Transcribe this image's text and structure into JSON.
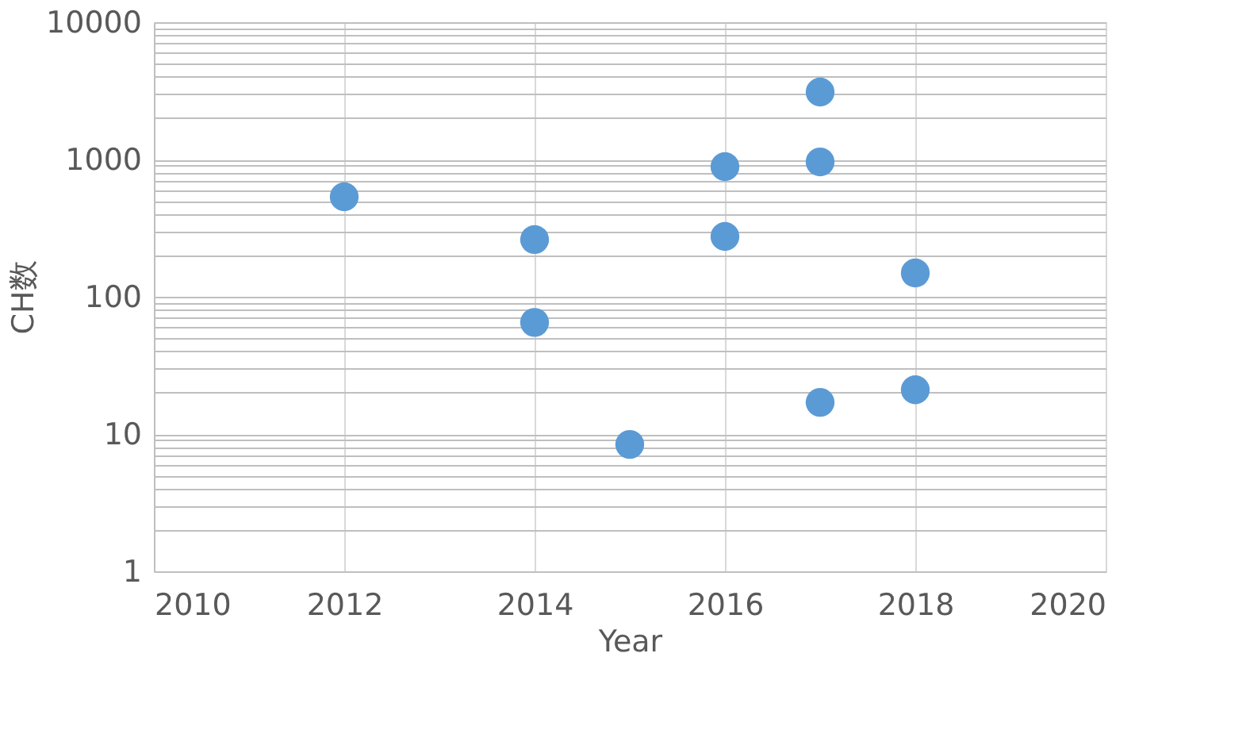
{
  "chart_data": {
    "type": "scatter",
    "xlabel": "Year",
    "ylabel": "CH数",
    "x": [
      2012,
      2014,
      2014,
      2015,
      2016,
      2016,
      2017,
      2017,
      2017,
      2018,
      2018
    ],
    "series": [
      {
        "color": "#5b9bd5",
        "values": [
          535,
          261,
          65,
          8.4,
          887,
          275,
          3100,
          960,
          17,
          149,
          21
        ]
      }
    ],
    "xlim": [
      2010,
      2020
    ],
    "xticks": [
      2010,
      2012,
      2014,
      2016,
      2018,
      2020
    ],
    "ylim": [
      1,
      10000
    ],
    "log": true,
    "yticks": [
      1,
      {
        "value": 2,
        "label": null
      },
      {
        "value": 3,
        "label": null
      },
      {
        "value": 4,
        "label": null
      },
      {
        "value": 5,
        "label": null
      },
      {
        "value": 6,
        "label": null
      },
      {
        "value": 7,
        "label": null
      },
      {
        "value": 8,
        "label": null
      },
      {
        "value": 9,
        "label": null
      },
      10,
      {
        "value": 20,
        "label": null
      },
      {
        "value": 30,
        "label": null
      },
      {
        "value": 40,
        "label": null
      },
      {
        "value": 50,
        "label": null
      },
      {
        "value": 60,
        "label": null
      },
      {
        "value": 70,
        "label": null
      },
      {
        "value": 80,
        "label": null
      },
      {
        "value": 90,
        "label": null
      },
      100,
      {
        "value": 200,
        "label": null
      },
      {
        "value": 300,
        "label": null
      },
      {
        "value": 400,
        "label": null
      },
      {
        "value": 500,
        "label": null
      },
      {
        "value": 600,
        "label": null
      },
      {
        "value": 700,
        "label": null
      },
      {
        "value": 800,
        "label": null
      },
      {
        "value": 900,
        "label": null
      },
      1000,
      {
        "value": 2000,
        "label": null
      },
      {
        "value": 3000,
        "label": null
      },
      {
        "value": 4000,
        "label": null
      },
      {
        "value": 5000,
        "label": null
      },
      {
        "value": 6000,
        "label": null
      },
      {
        "value": 7000,
        "label": null
      },
      {
        "value": 8000,
        "label": null
      },
      {
        "value": 9000,
        "label": null
      },
      10000
    ],
    "grid": true,
    "marker": "circle"
  }
}
